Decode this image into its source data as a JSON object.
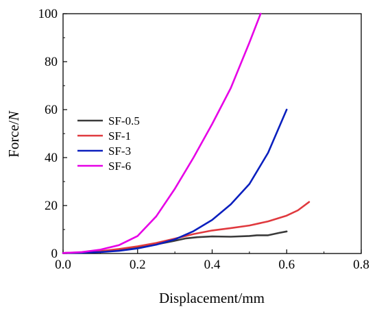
{
  "chart_data": {
    "type": "line",
    "title": "",
    "xlabel": "Displacement/mm",
    "ylabel_main": "Force/",
    "ylabel_italic": "N",
    "xlim": [
      0,
      0.8
    ],
    "ylim": [
      0,
      100
    ],
    "x_ticks": [
      "0.0",
      "0.2",
      "0.4",
      "0.6",
      "0.8"
    ],
    "y_ticks": [
      "0",
      "20",
      "40",
      "60",
      "80",
      "100"
    ],
    "grid": false,
    "legend_position": "center-left",
    "series": [
      {
        "name": "SF-0.5",
        "color": "#3a3a3a",
        "points": [
          [
            0,
            0.2
          ],
          [
            0.05,
            0.4
          ],
          [
            0.1,
            0.9
          ],
          [
            0.15,
            1.6
          ],
          [
            0.2,
            2.6
          ],
          [
            0.25,
            3.8
          ],
          [
            0.3,
            5.3
          ],
          [
            0.33,
            6.3
          ],
          [
            0.36,
            6.8
          ],
          [
            0.4,
            7.1
          ],
          [
            0.45,
            7.0
          ],
          [
            0.5,
            7.3
          ],
          [
            0.52,
            7.6
          ],
          [
            0.55,
            7.6
          ],
          [
            0.58,
            8.6
          ],
          [
            0.6,
            9.2
          ]
        ]
      },
      {
        "name": "SF-1",
        "color": "#e0393e",
        "points": [
          [
            0,
            0.2
          ],
          [
            0.05,
            0.5
          ],
          [
            0.1,
            1.0
          ],
          [
            0.15,
            1.9
          ],
          [
            0.2,
            3.0
          ],
          [
            0.25,
            4.4
          ],
          [
            0.3,
            6.2
          ],
          [
            0.35,
            8.1
          ],
          [
            0.4,
            9.6
          ],
          [
            0.45,
            10.6
          ],
          [
            0.5,
            11.7
          ],
          [
            0.55,
            13.4
          ],
          [
            0.6,
            15.8
          ],
          [
            0.63,
            18.0
          ],
          [
            0.66,
            21.5
          ]
        ]
      },
      {
        "name": "SF-3",
        "color": "#0a1fbe",
        "points": [
          [
            0,
            0.2
          ],
          [
            0.05,
            0.3
          ],
          [
            0.1,
            0.6
          ],
          [
            0.15,
            1.1
          ],
          [
            0.2,
            2.1
          ],
          [
            0.25,
            3.7
          ],
          [
            0.3,
            5.9
          ],
          [
            0.35,
            9.3
          ],
          [
            0.4,
            14.0
          ],
          [
            0.45,
            20.5
          ],
          [
            0.5,
            29.0
          ],
          [
            0.55,
            42.0
          ],
          [
            0.6,
            60.0
          ]
        ]
      },
      {
        "name": "SF-6",
        "color": "#e600e6",
        "points": [
          [
            0,
            0.2
          ],
          [
            0.05,
            0.6
          ],
          [
            0.1,
            1.6
          ],
          [
            0.15,
            3.5
          ],
          [
            0.2,
            7.3
          ],
          [
            0.25,
            15.5
          ],
          [
            0.3,
            27.0
          ],
          [
            0.35,
            40.0
          ],
          [
            0.4,
            54.0
          ],
          [
            0.45,
            69.0
          ],
          [
            0.5,
            88.0
          ],
          [
            0.53,
            100.0
          ]
        ]
      }
    ]
  }
}
